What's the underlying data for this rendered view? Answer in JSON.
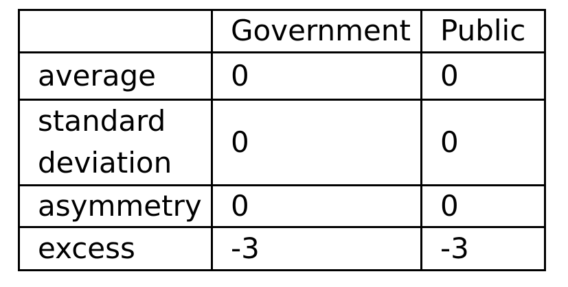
{
  "table": {
    "headers": [
      "",
      "Government",
      "Public"
    ],
    "rows": [
      {
        "label_lines": [
          "average"
        ],
        "government": "0",
        "public": "0"
      },
      {
        "label_lines": [
          "standard",
          "deviation"
        ],
        "government": "0",
        "public": "0"
      },
      {
        "label_lines": [
          "asymmetry"
        ],
        "government": "0",
        "public": "0"
      },
      {
        "label_lines": [
          "excess"
        ],
        "government": "-3",
        "public": "-3"
      }
    ]
  }
}
